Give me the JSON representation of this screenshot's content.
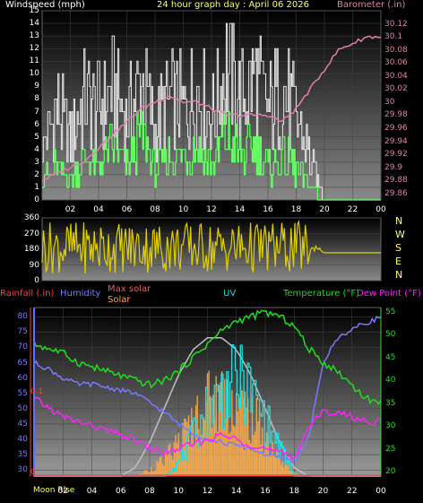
{
  "header": {
    "wind_label": "Windspeed (mph)",
    "graph_title": "24 hour graph day : April 06 2026",
    "baro_label": "Barometer (.in)"
  },
  "panel2": {
    "compass_labels": [
      "N",
      "W",
      "S",
      "E",
      "N"
    ]
  },
  "panel3": {
    "rain_label": "Rainfall (.in)",
    "humidity_label": "Humidity",
    "maxsolar_label": "Max solar",
    "solar_label": "Solar",
    "uv_label": "UV",
    "temp_label": "Temperature (°F)",
    "dew_label": "Dew Point (°F)",
    "moon_label": "Moon Rise"
  },
  "colors": {
    "wind_gust": "#e8e8e8",
    "wind_avg": "#66ff66",
    "barometer": "#e080b0",
    "direction": "#e0d000",
    "humidity": "#7a7aff",
    "temperature": "#22dd22",
    "dew_point": "#ff22ff",
    "uv": "#22dddd",
    "solar": "#ffaa44",
    "max_solar": "#c0c0c0",
    "rain": "#ff4040"
  },
  "chart_data": [
    {
      "type": "line",
      "name": "wind_barometer",
      "x_ticks": [
        "02",
        "04",
        "06",
        "08",
        "10",
        "12",
        "14",
        "16",
        "18",
        "20",
        "22",
        "00"
      ],
      "y_left_ticks": [
        "0",
        "1",
        "2",
        "3",
        "4",
        "5",
        "6",
        "7",
        "8",
        "9",
        "10",
        "11",
        "12",
        "13",
        "14",
        "15"
      ],
      "y_right_ticks": [
        "29.86",
        "29.88",
        "29.9",
        "29.92",
        "29.94",
        "29.96",
        "29.98",
        "30",
        "30.02",
        "30.04",
        "30.06",
        "30.08",
        "30.1",
        "30.12"
      ],
      "ylim_left": [
        0,
        15
      ],
      "ylim_right": [
        29.85,
        30.14
      ],
      "x_hours": [
        0,
        1,
        2,
        3,
        4,
        5,
        6,
        7,
        8,
        9,
        10,
        11,
        12,
        13,
        14,
        15,
        16,
        17,
        18,
        19,
        20,
        21,
        22,
        23,
        24
      ],
      "series": [
        {
          "key": "gust",
          "values": [
            5,
            9,
            6,
            10,
            9,
            11,
            8,
            12,
            7,
            10,
            9,
            11,
            8,
            13,
            10,
            12,
            9,
            11,
            8,
            4,
            0,
            0,
            0,
            0,
            0
          ]
        },
        {
          "key": "avg",
          "values": [
            2,
            3,
            2,
            4,
            3,
            5,
            3,
            6,
            3,
            4,
            4,
            5,
            3,
            6,
            4,
            5,
            3,
            4,
            3,
            1,
            0,
            0,
            0,
            0,
            0
          ]
        },
        {
          "key": "barometer",
          "values": [
            29.88,
            29.89,
            29.9,
            29.91,
            29.93,
            29.95,
            29.97,
            29.99,
            30.0,
            30.01,
            30.0,
            30.0,
            29.99,
            29.98,
            29.98,
            29.98,
            29.98,
            29.97,
            29.99,
            30.02,
            30.05,
            30.08,
            30.09,
            30.1,
            30.1
          ]
        }
      ]
    },
    {
      "type": "line",
      "name": "wind_direction",
      "y_ticks": [
        "0",
        "90",
        "180",
        "270",
        "360"
      ],
      "ylim": [
        0,
        360
      ],
      "x_hours": [
        0,
        1,
        2,
        3,
        4,
        5,
        6,
        7,
        8,
        9,
        10,
        11,
        12,
        13,
        14,
        15,
        16,
        17,
        18,
        19,
        20,
        21,
        22,
        23,
        24
      ],
      "values": [
        200,
        320,
        120,
        300,
        90,
        330,
        150,
        280,
        110,
        300,
        200,
        310,
        130,
        290,
        170,
        300,
        210,
        250,
        180,
        190,
        160,
        160,
        160,
        160,
        160
      ]
    },
    {
      "type": "line",
      "name": "temp_humidity_solar",
      "x_ticks": [
        "02",
        "04",
        "06",
        "08",
        "10",
        "12",
        "14",
        "16",
        "18",
        "20",
        "22",
        "00"
      ],
      "y_humidity_ticks": [
        "30",
        "35",
        "40",
        "45",
        "50",
        "55",
        "60",
        "65",
        "70",
        "75",
        "80"
      ],
      "y_temp_ticks": [
        "20",
        "25",
        "30",
        "35",
        "40",
        "45",
        "50",
        "55"
      ],
      "y_rain_ticks": [
        "0",
        "0.1"
      ],
      "ylim_humidity": [
        28,
        83
      ],
      "ylim_temp": [
        19,
        56
      ],
      "x_hours": [
        0,
        1,
        2,
        3,
        4,
        5,
        6,
        7,
        8,
        9,
        10,
        11,
        12,
        13,
        14,
        15,
        16,
        17,
        18,
        19,
        20,
        21,
        22,
        23,
        24
      ],
      "series": [
        {
          "key": "temperature",
          "values": [
            48,
            47,
            46,
            44,
            43,
            42,
            41,
            40,
            39,
            40,
            42,
            45,
            48,
            51,
            53,
            54,
            55,
            54,
            52,
            47,
            44,
            42,
            39,
            36,
            35
          ]
        },
        {
          "key": "humidity",
          "values": [
            65,
            63,
            60,
            58,
            58,
            57,
            56,
            55,
            52,
            49,
            45,
            42,
            40,
            39,
            38,
            37,
            35,
            34,
            33,
            40,
            65,
            73,
            76,
            78,
            80
          ]
        },
        {
          "key": "dew_point",
          "values": [
            36,
            34,
            32,
            31,
            30,
            29,
            28,
            27,
            25,
            24,
            25,
            26,
            27,
            28,
            27,
            26,
            25,
            24,
            23,
            30,
            33,
            33,
            32,
            31,
            31
          ]
        },
        {
          "key": "uv",
          "values": [
            0,
            0,
            0,
            0,
            0,
            0,
            0,
            0,
            0,
            0,
            1,
            3,
            5,
            6,
            7,
            6,
            4,
            2,
            0,
            0,
            0,
            0,
            0,
            0,
            0
          ]
        },
        {
          "key": "solar_pct",
          "values": [
            0,
            0,
            0,
            0,
            0,
            0,
            0,
            0,
            5,
            12,
            25,
            40,
            55,
            60,
            55,
            45,
            30,
            12,
            2,
            0,
            0,
            0,
            0,
            0,
            0
          ]
        },
        {
          "key": "max_solar_pct",
          "values": [
            0,
            0,
            0,
            0,
            0,
            0,
            0,
            5,
            20,
            40,
            60,
            75,
            82,
            82,
            75,
            60,
            40,
            20,
            5,
            0,
            0,
            0,
            0,
            0,
            0
          ]
        }
      ]
    }
  ]
}
